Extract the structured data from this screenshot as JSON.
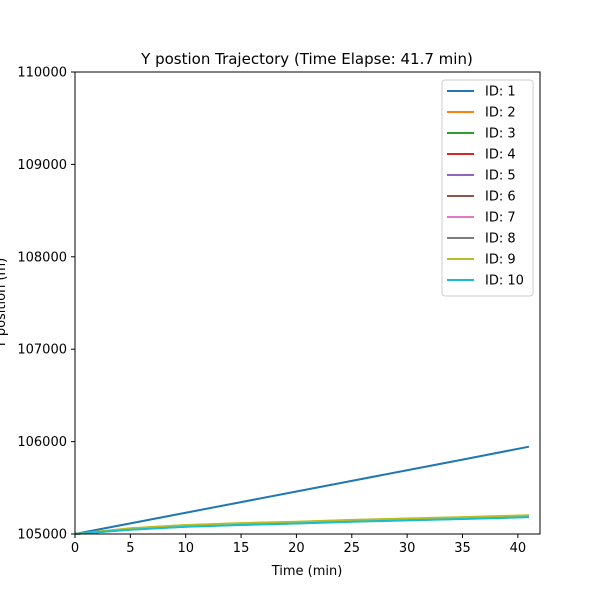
{
  "chart_data": {
    "type": "line",
    "title": "Y postion Trajectory (Time Elapse: 41.7 min)",
    "xlabel": "Time (min)",
    "ylabel": "Y position (m)",
    "xlim": [
      0,
      42
    ],
    "ylim": [
      105000,
      110000
    ],
    "xticks": [
      0,
      5,
      10,
      15,
      20,
      25,
      30,
      35,
      40
    ],
    "yticks": [
      105000,
      106000,
      107000,
      108000,
      109000,
      110000
    ],
    "grid": false,
    "legend_position": "top-right",
    "x": [
      0,
      5,
      10,
      15,
      20,
      25,
      30,
      35,
      41
    ],
    "series": [
      {
        "name": "ID: 1",
        "color": "#1f77b4",
        "values": [
          105000,
          105115,
          105230,
          105345,
          105460,
          105575,
          105690,
          105805,
          105945
        ]
      },
      {
        "name": "ID: 2",
        "color": "#ff7f0e",
        "values": [
          105000,
          105060,
          105095,
          105115,
          105130,
          105150,
          105165,
          105180,
          105200
        ]
      },
      {
        "name": "ID: 3",
        "color": "#2ca02c",
        "values": [
          105000,
          105058,
          105092,
          105112,
          105128,
          105147,
          105162,
          105177,
          105197
        ]
      },
      {
        "name": "ID: 4",
        "color": "#d62728",
        "values": [
          105000,
          105056,
          105090,
          105110,
          105126,
          105145,
          105160,
          105175,
          105195
        ]
      },
      {
        "name": "ID: 5",
        "color": "#9467bd",
        "values": [
          105000,
          105054,
          105087,
          105107,
          105123,
          105142,
          105157,
          105172,
          105192
        ]
      },
      {
        "name": "ID: 6",
        "color": "#8c564b",
        "values": [
          105000,
          105052,
          105085,
          105105,
          105120,
          105140,
          105155,
          105170,
          105190
        ]
      },
      {
        "name": "ID: 7",
        "color": "#e377c2",
        "values": [
          105000,
          105050,
          105083,
          105103,
          105118,
          105137,
          105152,
          105168,
          105188
        ]
      },
      {
        "name": "ID: 8",
        "color": "#7f7f7f",
        "values": [
          105000,
          105048,
          105080,
          105100,
          105115,
          105135,
          105150,
          105165,
          105185
        ]
      },
      {
        "name": "ID: 9",
        "color": "#bcbd22",
        "values": [
          105000,
          105062,
          105097,
          105118,
          105133,
          105153,
          105168,
          105183,
          105203
        ]
      },
      {
        "name": "ID: 10",
        "color": "#17becf",
        "values": [
          105000,
          105046,
          105078,
          105098,
          105113,
          105132,
          105147,
          105163,
          105182
        ]
      }
    ]
  }
}
